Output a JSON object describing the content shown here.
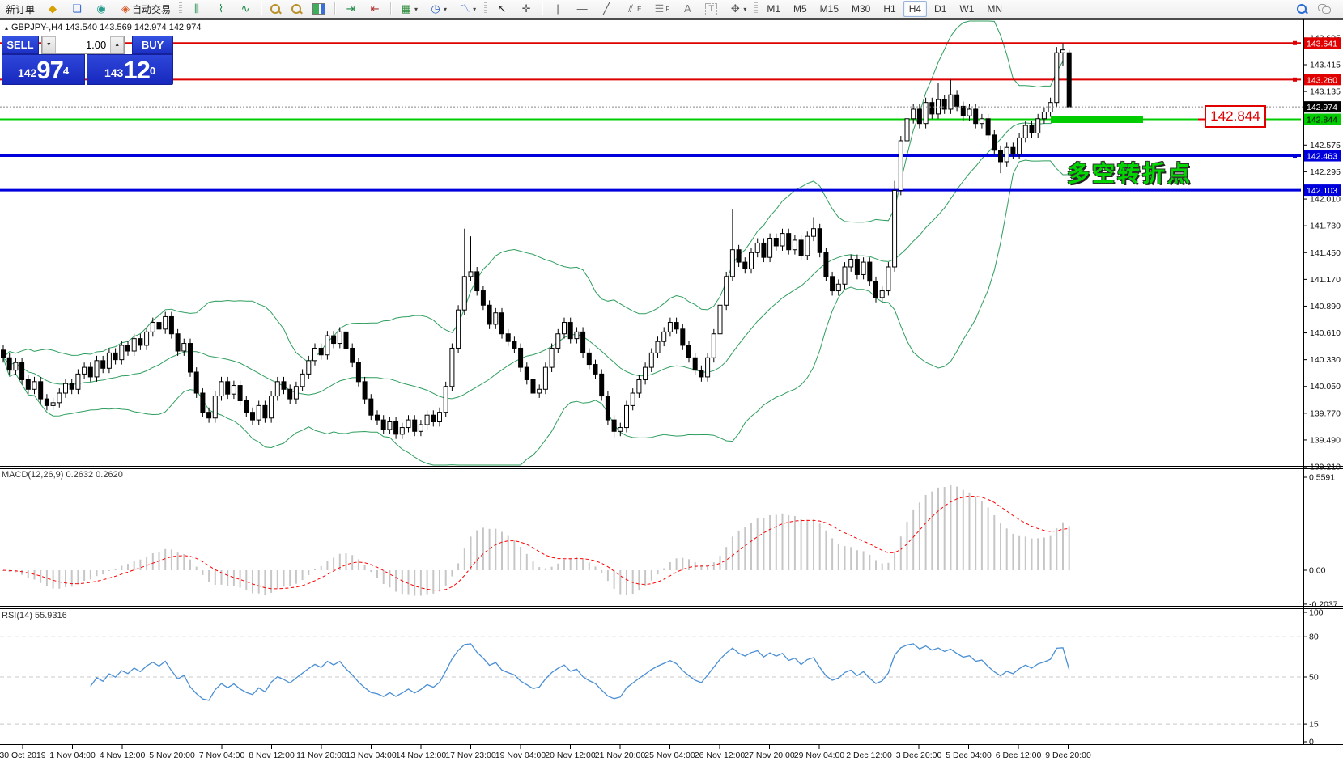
{
  "toolbar": {
    "new_order": "新订单",
    "auto_trading": "自动交易",
    "timeframes": [
      "M1",
      "M5",
      "M15",
      "M30",
      "H1",
      "H4",
      "D1",
      "W1",
      "MN"
    ],
    "active_timeframe": "H4",
    "channel_letter": "E",
    "fibo_letter": "F",
    "text_letter": "A",
    "label_letter": "T"
  },
  "symbol_header": {
    "marker": "▴",
    "text": "GBPJPY-,H4  143.540 143.569 142.974 142.974"
  },
  "trade_panel": {
    "sell_label": "SELL",
    "buy_label": "BUY",
    "volume": "1.00",
    "spin_down": "▼",
    "spin_up": "▲",
    "sell_price": {
      "prefix": "142",
      "big": "97",
      "sup": "4"
    },
    "buy_price": {
      "prefix": "143",
      "big": "12",
      "sup": "0"
    }
  },
  "chart_data": {
    "type": "candlestick",
    "symbol": "GBPJPY-",
    "timeframe": "H4",
    "current_bar": {
      "open": "143.540",
      "high": "143.569",
      "low": "142.974",
      "close": "142.974"
    },
    "bid": 142.974,
    "price_ticks": [
      "143.695",
      "143.415",
      "143.135",
      "142.575",
      "142.295",
      "142.010",
      "141.730",
      "141.450",
      "141.170",
      "140.890",
      "140.610",
      "140.330",
      "140.050",
      "139.770",
      "139.490",
      "139.210"
    ],
    "time_ticks": [
      "30 Oct 2019",
      "1 Nov 04:00",
      "4 Nov 12:00",
      "5 Nov 20:00",
      "7 Nov 04:00",
      "8 Nov 12:00",
      "11 Nov 20:00",
      "13 Nov 04:00",
      "14 Nov 12:00",
      "17 Nov 23:00",
      "19 Nov 04:00",
      "20 Nov 12:00",
      "21 Nov 20:00",
      "25 Nov 04:00",
      "26 Nov 12:00",
      "27 Nov 20:00",
      "29 Nov 04:00",
      "2 Dec 12:00",
      "3 Dec 20:00",
      "5 Dec 04:00",
      "6 Dec 12:00",
      "9 Dec 20:00"
    ],
    "closes": [
      140.35,
      140.22,
      140.3,
      140.12,
      140.02,
      140.1,
      139.92,
      139.85,
      139.88,
      139.98,
      140.08,
      140.02,
      140.18,
      140.25,
      140.15,
      140.32,
      140.24,
      140.4,
      140.33,
      140.48,
      140.42,
      140.55,
      140.48,
      140.62,
      140.72,
      140.65,
      140.78,
      140.6,
      140.42,
      140.5,
      140.2,
      139.98,
      139.78,
      139.72,
      139.95,
      140.1,
      139.97,
      140.06,
      139.9,
      139.78,
      139.7,
      139.85,
      139.72,
      139.95,
      140.1,
      140.02,
      139.92,
      140.05,
      140.18,
      140.32,
      140.45,
      140.38,
      140.58,
      140.5,
      140.62,
      140.45,
      140.3,
      140.1,
      139.92,
      139.75,
      139.7,
      139.6,
      139.68,
      139.55,
      139.62,
      139.7,
      139.58,
      139.65,
      139.75,
      139.68,
      139.78,
      140.05,
      140.45,
      140.85,
      141.2,
      141.25,
      141.05,
      140.9,
      140.7,
      140.82,
      140.6,
      140.52,
      140.45,
      140.25,
      140.12,
      139.98,
      140.02,
      140.25,
      140.45,
      140.6,
      140.72,
      140.55,
      140.62,
      140.4,
      140.28,
      140.18,
      139.95,
      139.7,
      139.58,
      139.62,
      139.85,
      139.98,
      140.12,
      140.25,
      140.4,
      140.52,
      140.62,
      140.72,
      140.65,
      140.48,
      140.35,
      140.22,
      140.15,
      140.35,
      140.6,
      140.9,
      141.2,
      141.48,
      141.35,
      141.28,
      141.45,
      141.55,
      141.4,
      141.6,
      141.52,
      141.65,
      141.48,
      141.58,
      141.42,
      141.62,
      141.7,
      141.45,
      141.2,
      141.05,
      141.12,
      141.3,
      141.38,
      141.22,
      141.35,
      141.15,
      140.98,
      141.05,
      141.3,
      142.1,
      142.62,
      142.85,
      142.95,
      142.8,
      143.02,
      142.9,
      143.05,
      142.95,
      143.1,
      142.98,
      142.88,
      142.95,
      142.8,
      142.85,
      142.68,
      142.52,
      142.4,
      142.55,
      142.48,
      142.65,
      142.78,
      142.7,
      142.85,
      142.92,
      143.02,
      143.54,
      143.57,
      142.97
    ],
    "wick_overrides": {
      "74": [
        141.7,
        null
      ],
      "75": [
        141.62,
        null
      ],
      "98": [
        null,
        139.51
      ],
      "117": [
        141.9,
        null
      ],
      "130": [
        141.82,
        null
      ],
      "143": [
        142.2,
        null
      ],
      "150": [
        143.22,
        null
      ],
      "152": [
        143.26,
        null
      ],
      "160": [
        null,
        142.28
      ],
      "169": [
        143.6,
        null
      ],
      "170": [
        143.641,
        143.4
      ]
    },
    "last_ohlc": [
      143.54,
      143.569,
      142.974,
      142.974
    ],
    "bollinger": {
      "period": 20,
      "deviation": 2,
      "color": "#2e9e5e"
    },
    "hlines": [
      {
        "price": 143.641,
        "color": "#dd0000",
        "width": 2,
        "handle": true
      },
      {
        "price": 143.26,
        "color": "#dd0000",
        "width": 2,
        "handle": true
      },
      {
        "price": 142.844,
        "color": "#00cc00",
        "width": 2,
        "handle": false,
        "bold_segment": [
          1298,
          1412,
          9
        ]
      },
      {
        "price": 142.463,
        "color": "#0000dd",
        "width": 3,
        "handle": true
      },
      {
        "price": 142.103,
        "color": "#0000dd",
        "width": 3,
        "handle": false
      }
    ],
    "axis_badges": [
      {
        "text": "143.641",
        "bg": "#e00000",
        "fg": "#ffffff"
      },
      {
        "text": "143.260",
        "bg": "#e00000",
        "fg": "#ffffff"
      },
      {
        "text": "142.974",
        "bg": "#000000",
        "fg": "#ffffff"
      },
      {
        "text": "142.844",
        "bg": "#00cc00",
        "fg": "#000000"
      },
      {
        "text": "142.463",
        "bg": "#0000dd",
        "fg": "#ffffff"
      },
      {
        "text": "142.103",
        "bg": "#0000dd",
        "fg": "#ffffff"
      }
    ],
    "price_callout": {
      "text": "142.844",
      "price": 142.844
    },
    "annotation": {
      "text": "多空转折点",
      "color": "#00d600"
    },
    "macd": {
      "label": "MACD(12,26,9) 0.2632 0.2620",
      "params": [
        12,
        26,
        9
      ],
      "value": "0.2632",
      "signal_value": "0.2620",
      "axis": [
        "0.5591",
        "0.00",
        "-0.2037"
      ],
      "histogram_color": "#c6c6c6",
      "signal_color": "#ff0000"
    },
    "rsi": {
      "label": "RSI(14) 55.9316",
      "period": 14,
      "value": "55.9316",
      "axis": [
        "100",
        "80",
        "50",
        "15",
        "0"
      ],
      "levels": [
        80,
        50,
        15
      ],
      "line_color": "#4a8fd4"
    }
  }
}
